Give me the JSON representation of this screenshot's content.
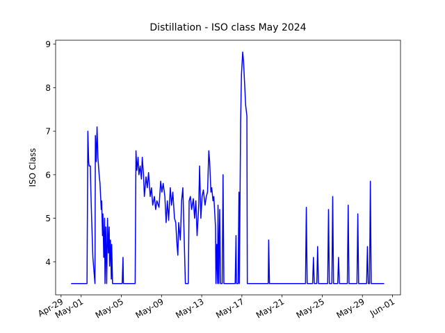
{
  "chart_data": {
    "type": "line",
    "title": "Distillation - ISO class May 2024",
    "ylabel": "ISO Class",
    "color": "#0000ff",
    "x": [
      "2024-04-30T00:00",
      "2024-05-01T14:00",
      "2024-05-01T16:00",
      "2024-05-01T18:00",
      "2024-05-01T19:00",
      "2024-05-01T22:00",
      "2024-05-01T23:00",
      "2024-05-02T01:00",
      "2024-05-02T04:00",
      "2024-05-02T09:00",
      "2024-05-02T10:00",
      "2024-05-02T12:00",
      "2024-05-02T14:00",
      "2024-05-02T16:00",
      "2024-05-02T19:00",
      "2024-05-02T21:00",
      "2024-05-03T00:00",
      "2024-05-03T01:00",
      "2024-05-03T03:00",
      "2024-05-03T04:00",
      "2024-05-03T06:00",
      "2024-05-03T08:00",
      "2024-05-03T09:00",
      "2024-05-03T11:00",
      "2024-05-03T13:00",
      "2024-05-03T15:00",
      "2024-05-03T17:00",
      "2024-05-03T19:00",
      "2024-05-03T20:00",
      "2024-05-03T22:00",
      "2024-05-04T00:00",
      "2024-05-04T01:00",
      "2024-05-04T03:00",
      "2024-05-05T02:00",
      "2024-05-05T04:00",
      "2024-05-05T05:00",
      "2024-05-06T09:00",
      "2024-05-06T11:00",
      "2024-05-06T13:00",
      "2024-05-06T16:00",
      "2024-05-06T18:00",
      "2024-05-06T21:00",
      "2024-05-07T00:00",
      "2024-05-07T02:00",
      "2024-05-07T05:00",
      "2024-05-07T07:00",
      "2024-05-07T11:00",
      "2024-05-07T14:00",
      "2024-05-07T17:00",
      "2024-05-07T21:00",
      "2024-05-08T00:00",
      "2024-05-08T03:00",
      "2024-05-08T07:00",
      "2024-05-08T10:00",
      "2024-05-08T13:00",
      "2024-05-08T18:00",
      "2024-05-08T22:00",
      "2024-05-09T01:00",
      "2024-05-09T04:00",
      "2024-05-09T08:00",
      "2024-05-09T11:00",
      "2024-05-09T14:00",
      "2024-05-09T17:00",
      "2024-05-09T21:00",
      "2024-05-10T00:00",
      "2024-05-10T03:00",
      "2024-05-10T07:00",
      "2024-05-10T10:00",
      "2024-05-10T13:00",
      "2024-05-10T15:00",
      "2024-05-10T17:00",
      "2024-05-10T21:00",
      "2024-05-11T00:00",
      "2024-05-11T03:00",
      "2024-05-11T06:00",
      "2024-05-11T09:00",
      "2024-05-11T16:00",
      "2024-05-11T18:00",
      "2024-05-11T21:00",
      "2024-05-12T00:00",
      "2024-05-12T04:00",
      "2024-05-12T07:00",
      "2024-05-12T10:00",
      "2024-05-12T13:00",
      "2024-05-12T17:00",
      "2024-05-12T19:00",
      "2024-05-12T22:00",
      "2024-05-13T01:00",
      "2024-05-13T04:00",
      "2024-05-13T08:00",
      "2024-05-13T11:00",
      "2024-05-13T14:00",
      "2024-05-13T17:00",
      "2024-05-13T19:00",
      "2024-05-13T22:00",
      "2024-05-14T00:00",
      "2024-05-14T03:00",
      "2024-05-14T05:00",
      "2024-05-14T09:00",
      "2024-05-14T10:00",
      "2024-05-14T12:00",
      "2024-05-14T14:00",
      "2024-05-14T15:00",
      "2024-05-14T17:00",
      "2024-05-14T19:00",
      "2024-05-14T21:00",
      "2024-05-15T01:00",
      "2024-05-15T03:00",
      "2024-05-15T05:00",
      "2024-05-16T08:00",
      "2024-05-16T10:00",
      "2024-05-16T11:00",
      "2024-05-16T15:00",
      "2024-05-16T17:00",
      "2024-05-16T18:00",
      "2024-05-16T21:00",
      "2024-05-16T23:00",
      "2024-05-17T02:00",
      "2024-05-17T04:00",
      "2024-05-17T07:00",
      "2024-05-17T09:00",
      "2024-05-17T12:00",
      "2024-05-17T13:00",
      "2024-05-19T15:00",
      "2024-05-19T16:00",
      "2024-05-19T18:00",
      "2024-05-23T08:00",
      "2024-05-23T10:00",
      "2024-05-23T12:00",
      "2024-05-24T01:00",
      "2024-05-24T03:00",
      "2024-05-24T05:00",
      "2024-05-24T11:00",
      "2024-05-24T13:00",
      "2024-05-24T15:00",
      "2024-05-25T13:00",
      "2024-05-25T15:00",
      "2024-05-25T17:00",
      "2024-05-25T23:00",
      "2024-05-26T01:00",
      "2024-05-26T03:00",
      "2024-05-26T13:00",
      "2024-05-26T15:00",
      "2024-05-26T17:00",
      "2024-05-27T12:00",
      "2024-05-27T14:00",
      "2024-05-27T16:00",
      "2024-05-28T11:00",
      "2024-05-28T13:00",
      "2024-05-28T15:00",
      "2024-05-29T10:00",
      "2024-05-29T12:00",
      "2024-05-29T14:00",
      "2024-05-29T17:00",
      "2024-05-29T19:00",
      "2024-05-29T21:00",
      "2024-05-31T04:00"
    ],
    "values": [
      3.5,
      3.5,
      7.0,
      6.3,
      6.2,
      6.2,
      5.7,
      5.0,
      4.1,
      3.5,
      6.9,
      6.3,
      7.1,
      6.4,
      6.0,
      5.8,
      5.2,
      5.4,
      4.6,
      5.1,
      4.1,
      5.0,
      3.5,
      4.8,
      3.5,
      5.0,
      4.2,
      4.8,
      3.9,
      4.5,
      3.6,
      4.4,
      3.5,
      3.5,
      4.1,
      3.5,
      3.5,
      6.55,
      6.1,
      6.4,
      6.0,
      6.2,
      5.9,
      6.4,
      6.0,
      5.5,
      5.95,
      5.7,
      6.05,
      5.5,
      5.7,
      5.3,
      5.5,
      5.2,
      5.4,
      5.25,
      5.85,
      5.6,
      5.8,
      5.5,
      4.9,
      5.4,
      4.95,
      5.7,
      5.3,
      5.6,
      5.0,
      4.9,
      4.4,
      4.15,
      4.9,
      4.5,
      5.4,
      5.7,
      4.6,
      3.5,
      3.5,
      5.4,
      5.5,
      5.2,
      5.45,
      5.0,
      5.4,
      4.6,
      5.3,
      6.2,
      5.0,
      5.5,
      5.65,
      5.3,
      5.5,
      5.6,
      6.55,
      6.3,
      5.6,
      5.7,
      5.4,
      5.5,
      4.8,
      3.5,
      4.4,
      3.5,
      5.3,
      3.5,
      5.2,
      3.5,
      3.5,
      6.0,
      3.5,
      3.5,
      4.6,
      3.5,
      3.5,
      5.6,
      3.5,
      7.2,
      8.3,
      8.82,
      8.6,
      8.0,
      7.6,
      7.35,
      3.5,
      3.5,
      4.5,
      3.5,
      3.5,
      5.25,
      3.5,
      3.5,
      4.1,
      3.5,
      3.5,
      4.35,
      3.5,
      3.5,
      5.2,
      3.5,
      3.5,
      5.5,
      3.5,
      3.5,
      4.1,
      3.5,
      3.5,
      5.3,
      3.5,
      3.5,
      5.1,
      3.5,
      3.5,
      4.35,
      3.5,
      3.5,
      5.85,
      3.5,
      3.5
    ],
    "xlim": [
      "2024-04-28T11:00",
      "2024-06-01T19:00"
    ],
    "xticks": [
      {
        "value": "2024-04-29",
        "label": "Apr-29"
      },
      {
        "value": "2024-05-01",
        "label": "May-01"
      },
      {
        "value": "2024-05-05",
        "label": "May-05"
      },
      {
        "value": "2024-05-09",
        "label": "May-09"
      },
      {
        "value": "2024-05-13",
        "label": "May-13"
      },
      {
        "value": "2024-05-17",
        "label": "May-17"
      },
      {
        "value": "2024-05-21",
        "label": "May-21"
      },
      {
        "value": "2024-05-25",
        "label": "May-25"
      },
      {
        "value": "2024-05-29",
        "label": "May-29"
      },
      {
        "value": "2024-06-01",
        "label": "Jun-01"
      }
    ],
    "ylim": [
      3.24,
      9.09
    ],
    "yticks": [
      4,
      5,
      6,
      7,
      8,
      9
    ],
    "grid": false
  }
}
